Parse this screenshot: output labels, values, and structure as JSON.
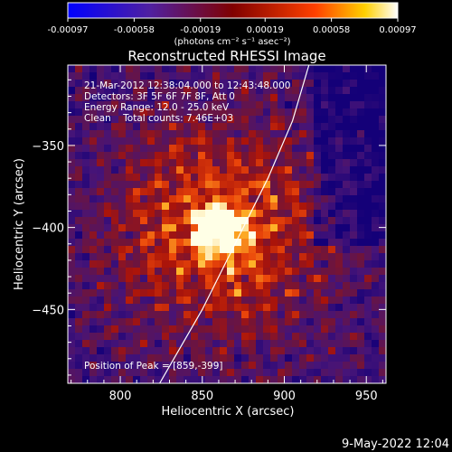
{
  "chart_data": {
    "type": "heatmap",
    "title": "Reconstructed RHESSI Image",
    "xlabel": "Heliocentric X (arcsec)",
    "ylabel": "Heliocentric Y (arcsec)",
    "xlim": [
      768,
      962
    ],
    "ylim": [
      -495,
      -301
    ],
    "xticks": [
      800,
      850,
      900,
      950
    ],
    "yticks": [
      -350,
      -400,
      -450
    ],
    "x_tick_labels": [
      "800",
      "850",
      "900",
      "950"
    ],
    "y_tick_labels": [
      "−350",
      "−400",
      "−450"
    ],
    "colorbar": {
      "range": [
        -0.00097,
        0.00097
      ],
      "ticks": [
        -0.00097,
        -0.00058,
        -0.00019,
        0.00019,
        0.00058,
        0.00097
      ],
      "tick_labels": [
        "-0.00097",
        "-0.00058",
        "-0.00019",
        "0.00019",
        "0.00058",
        "0.00097"
      ],
      "units_label": "(photons cm⁻² s⁻¹ asec⁻²)",
      "colormap": "blue-purple-red-yellow-white"
    },
    "annotations": {
      "time_range": "21-Mar-2012 12:38:04.000 to 12:43:48.000",
      "detectors": "Detectors: 3F 5F 6F 7F 8F, Att 0",
      "energy": "Energy Range: 12.0 - 25.0 keV",
      "clean": "Clean    Total counts: 7.46E+03",
      "peak_label": "Position of Peak = [859,-399]"
    },
    "peak": [
      859,
      -399
    ],
    "limb_curve": [
      [
        824,
        -495
      ],
      [
        850,
        -450
      ],
      [
        870,
        -410
      ],
      [
        890,
        -370
      ],
      [
        905,
        -335
      ],
      [
        915,
        -301
      ]
    ]
  },
  "footer": {
    "date_stamp": "9-May-2022 12:04"
  }
}
